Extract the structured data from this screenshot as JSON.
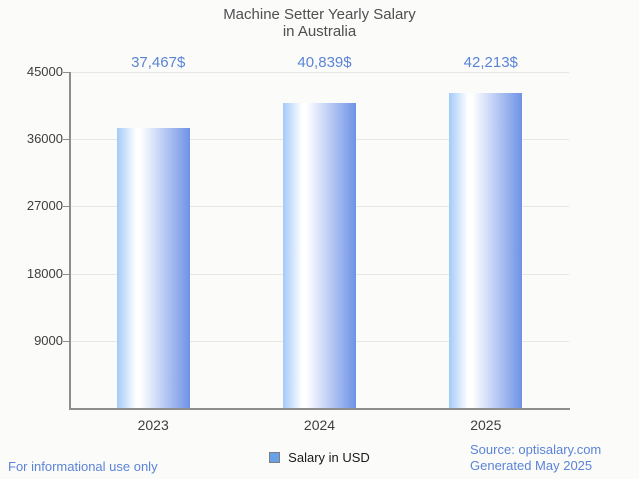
{
  "title": {
    "line1": "Machine Setter Yearly Salary",
    "line2": "in Australia"
  },
  "chart_data": {
    "type": "bar",
    "title": "Machine Setter Yearly Salary in Australia",
    "categories": [
      "2023",
      "2024",
      "2025"
    ],
    "series": [
      {
        "name": "Salary in USD",
        "values": [
          37467,
          40839,
          42213
        ]
      }
    ],
    "value_labels": [
      "37,467$",
      "40,839$",
      "42,213$"
    ],
    "y_ticks": [
      9000,
      18000,
      27000,
      36000,
      45000
    ],
    "ylim": [
      0,
      45000
    ],
    "xlabel": "",
    "ylabel": "",
    "grid": true,
    "legend_position": "bottom",
    "bar_gradient": [
      "#a3caf9",
      "#ffffff",
      "#6e92e6"
    ]
  },
  "legend": {
    "marker_color": "#68a1e7",
    "marker_border": "#7f7f7f"
  },
  "footer": {
    "note": "For informational use only",
    "source": "Source: optisalary.com",
    "generated": "Generated May 2025"
  },
  "colors": {
    "accent": "#5b84d8",
    "title": "#4e4f51",
    "tick": "#3e3e3e",
    "axis": "#8e8e8e",
    "grid": "#e7e7e4",
    "bg": "#fbfbf9"
  }
}
